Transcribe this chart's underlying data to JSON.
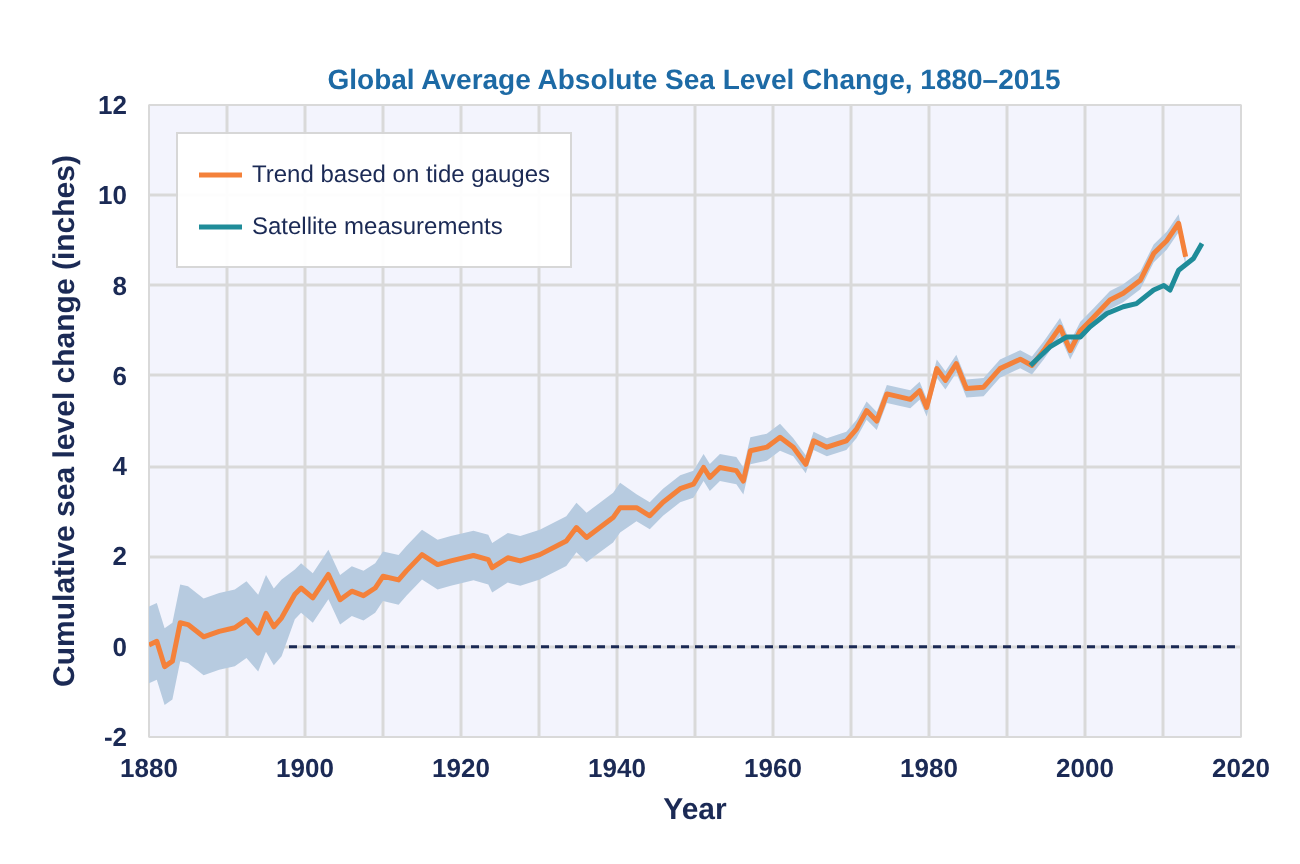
{
  "chart_data": {
    "type": "line",
    "title": "Global Average Absolute Sea Level Change, 1880–2015",
    "xlabel": "Year",
    "ylabel": "Cumulative sea level change (inches)",
    "xlim": [
      1880,
      2020
    ],
    "ylim": [
      -2,
      12
    ],
    "xticks": [
      1880,
      {
        "value": 1890,
        "label": null
      },
      1900,
      {
        "value": 1910,
        "label": null
      },
      1920,
      {
        "value": 1930,
        "label": null
      },
      1940,
      {
        "value": 1950,
        "label": null
      },
      1960,
      {
        "value": 1970,
        "label": null
      },
      1980,
      {
        "value": 1990,
        "label": null
      },
      2000,
      {
        "value": 2010,
        "label": null
      },
      2020
    ],
    "yticks": [
      -2,
      0,
      2,
      4,
      6,
      8,
      10,
      12
    ],
    "grid": true,
    "legend": "top left",
    "ref_lines": [
      {
        "axis": "y",
        "value": 0,
        "label": null,
        "color": "#1b2a55",
        "line_style": "dashed"
      }
    ],
    "series": [
      {
        "name": "Trend based on tide gauges",
        "color": "#f4813a",
        "x": [
          1880,
          1881,
          1882,
          1883,
          1884,
          1885,
          1887,
          1889,
          1891,
          1892.5,
          1894,
          1895,
          1896,
          1897,
          1898.7,
          1899.5,
          1901,
          1903,
          1904.5,
          1906,
          1907.5,
          1909,
          1910,
          1912,
          1913,
          1915,
          1917,
          1918.7,
          1921.6,
          1923.5,
          1924,
          1926,
          1927.6,
          1930.1,
          1933.5,
          1934.8,
          1936.1,
          1937.8,
          1939.5,
          1940.4,
          1942.5,
          1944.2,
          1945.9,
          1948.1,
          1949.8,
          1951.1,
          1951.9,
          1953.2,
          1955.3,
          1956.2,
          1957.1,
          1959.2,
          1960.9,
          1962.6,
          1964.2,
          1965.2,
          1966.9,
          1969.4,
          1970.7,
          1972,
          1973.3,
          1974.6,
          1977.6,
          1978.8,
          1979.7,
          1981,
          1982.1,
          1983.5,
          1984.8,
          1987,
          1989.1,
          1991.7,
          1993.2,
          1994.7,
          1996.8,
          1998.1,
          1999.4,
          2001.1,
          2003.2,
          2004.9,
          2007.1,
          2008.8,
          2010.5,
          2012,
          2012.9
        ],
        "values": [
          0.04,
          0.12,
          -0.44,
          -0.32,
          0.53,
          0.49,
          0.22,
          0.34,
          0.42,
          0.6,
          0.3,
          0.74,
          0.44,
          0.64,
          1.16,
          1.3,
          1.08,
          1.6,
          1.04,
          1.23,
          1.13,
          1.3,
          1.56,
          1.48,
          1.68,
          2.04,
          1.82,
          1.9,
          2.02,
          1.93,
          1.75,
          1.97,
          1.9,
          2.04,
          2.34,
          2.64,
          2.42,
          2.64,
          2.86,
          3.08,
          3.08,
          2.9,
          3.2,
          3.5,
          3.6,
          3.97,
          3.75,
          3.97,
          3.9,
          3.67,
          4.34,
          4.42,
          4.64,
          4.42,
          4.04,
          4.56,
          4.42,
          4.56,
          4.82,
          5.23,
          5.0,
          5.6,
          5.48,
          5.67,
          5.3,
          6.16,
          5.9,
          6.27,
          5.72,
          5.75,
          6.16,
          6.37,
          6.23,
          6.56,
          7.08,
          6.56,
          7.0,
          7.3,
          7.68,
          7.83,
          8.12,
          8.71,
          9.0,
          9.38,
          8.64
        ],
        "lower": [
          -0.81,
          -0.73,
          -1.29,
          -1.17,
          -0.32,
          -0.36,
          -0.63,
          -0.51,
          -0.43,
          -0.25,
          -0.55,
          -0.11,
          -0.41,
          -0.21,
          0.61,
          0.75,
          0.53,
          1.05,
          0.49,
          0.68,
          0.58,
          0.75,
          1.01,
          0.93,
          1.13,
          1.49,
          1.27,
          1.35,
          1.47,
          1.38,
          1.2,
          1.42,
          1.35,
          1.49,
          1.79,
          2.09,
          1.87,
          2.09,
          2.31,
          2.53,
          2.78,
          2.6,
          2.9,
          3.2,
          3.3,
          3.67,
          3.45,
          3.67,
          3.6,
          3.37,
          4.04,
          4.12,
          4.34,
          4.22,
          3.84,
          4.36,
          4.22,
          4.36,
          4.62,
          5.03,
          4.8,
          5.4,
          5.28,
          5.47,
          5.1,
          5.96,
          5.7,
          6.07,
          5.52,
          5.55,
          5.96,
          6.17,
          6.03,
          6.36,
          6.88,
          6.36,
          6.8,
          7.1,
          7.48,
          7.63,
          7.92,
          8.51,
          8.8,
          9.18,
          8.44
        ],
        "upper": [
          0.89,
          0.97,
          0.41,
          0.53,
          1.38,
          1.34,
          1.07,
          1.19,
          1.27,
          1.45,
          1.15,
          1.59,
          1.29,
          1.49,
          1.71,
          1.85,
          1.63,
          2.15,
          1.59,
          1.78,
          1.68,
          1.85,
          2.11,
          2.03,
          2.23,
          2.59,
          2.37,
          2.45,
          2.57,
          2.48,
          2.3,
          2.52,
          2.45,
          2.59,
          2.89,
          3.19,
          2.97,
          3.19,
          3.41,
          3.63,
          3.38,
          3.2,
          3.5,
          3.8,
          3.9,
          4.27,
          4.05,
          4.27,
          4.2,
          3.97,
          4.64,
          4.72,
          4.94,
          4.62,
          4.24,
          4.76,
          4.62,
          4.76,
          5.02,
          5.43,
          5.2,
          5.8,
          5.68,
          5.87,
          5.5,
          6.36,
          6.1,
          6.47,
          5.92,
          5.95,
          6.36,
          6.57,
          6.43,
          6.76,
          7.28,
          6.76,
          7.2,
          7.5,
          7.88,
          8.03,
          8.32,
          8.91,
          9.2,
          9.58,
          8.84
        ]
      },
      {
        "name": "Satellite measurements",
        "color": "#1f8c99",
        "x": [
          1993.0,
          1995.5,
          1997.6,
          1999.4,
          2000.6,
          2002.8,
          2004.9,
          2006.6,
          2008.8,
          2010.1,
          2010.9,
          2012,
          2013.9,
          2015
        ],
        "values": [
          6.23,
          6.64,
          6.86,
          6.86,
          7.08,
          7.38,
          7.53,
          7.6,
          7.9,
          8.0,
          7.9,
          8.34,
          8.6,
          8.93
        ]
      }
    ]
  }
}
